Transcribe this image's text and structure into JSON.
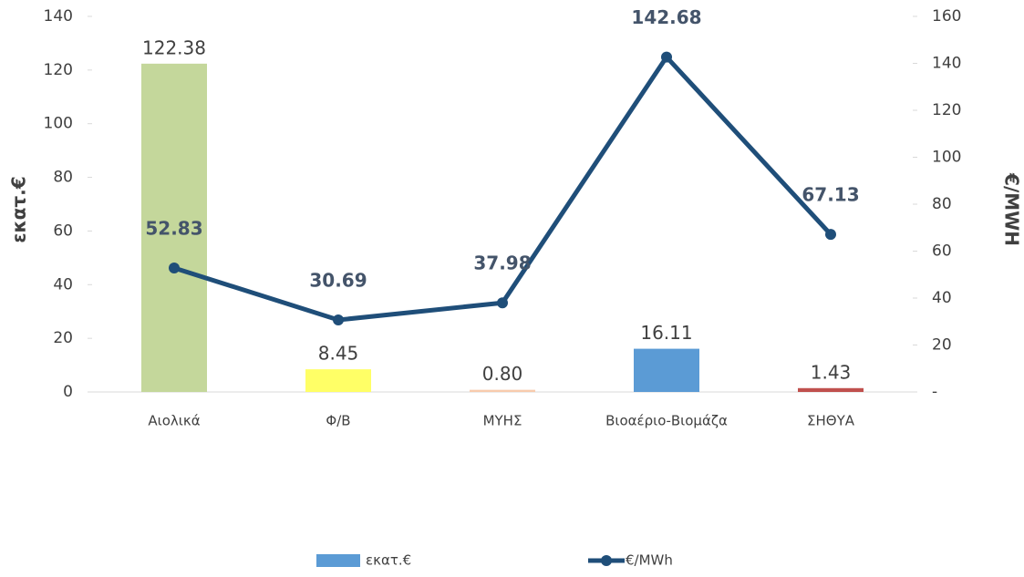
{
  "chart_data": {
    "type": "bar_line",
    "categories": [
      "Αιολικά",
      "Φ/Β",
      "ΜΥΗΣ",
      "Βιοαέριο-Βιομάζα",
      "ΣΗΘΥΑ"
    ],
    "series": [
      {
        "name": "εκατ.€",
        "type": "bar",
        "color": "#5b9bd5",
        "colors": [
          "#c4d79b",
          "#ffff66",
          "#f8cbad",
          "#5b9bd5",
          "#c0504d"
        ],
        "values": [
          122.38,
          8.45,
          0.8,
          16.11,
          1.43
        ],
        "value_labels": [
          "122.38",
          "8.45",
          "0.80",
          "16.11",
          "1.43"
        ]
      },
      {
        "name": "€/MWh",
        "type": "line",
        "axis": "y2",
        "color": "#1f4e79",
        "values": [
          52.83,
          30.69,
          37.98,
          142.68,
          67.13
        ]
      }
    ],
    "ylabel": "εκατ.€",
    "y2label": "€/MWH",
    "ylim": [
      0,
      140
    ],
    "yticks": [
      0,
      20,
      40,
      60,
      80,
      100,
      120,
      140
    ],
    "y2lim": [
      0,
      160
    ],
    "y2ticks": [
      {
        "value": 0,
        "label": "-"
      },
      20,
      40,
      60,
      80,
      100,
      120,
      140,
      160
    ],
    "grid": false,
    "legend": "bottom"
  }
}
